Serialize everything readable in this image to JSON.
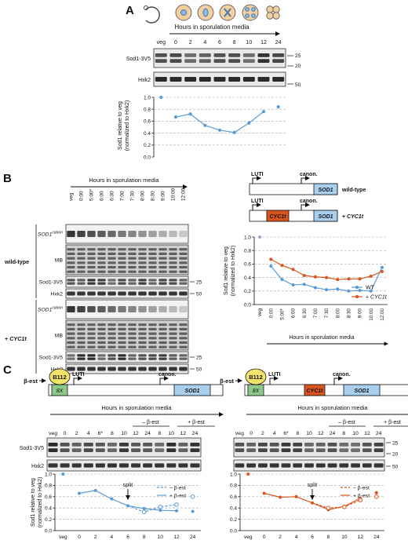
{
  "panelA": {
    "label": "A",
    "timeline_label": "Hours in sporulation media",
    "lanes": [
      "veg",
      "0",
      "2",
      "4",
      "6",
      "8",
      "10",
      "12",
      "24"
    ],
    "blots": [
      {
        "name": "Sod1-3V5",
        "markers": [
          "25",
          "20"
        ]
      },
      {
        "name": "Hxk2",
        "markers": [
          "50"
        ]
      }
    ],
    "ylabel_1": "Sod1 relative to veg",
    "ylabel_2": "(normalized to Hxk2)",
    "yticks": [
      "0.0",
      "0.2",
      "0.4",
      "0.6",
      "0.8",
      "1.0"
    ]
  },
  "panelB": {
    "label": "B",
    "timeline_label": "Hours in sporulation media",
    "lanes": [
      "veg",
      "0:00",
      "5:00*",
      "6:00",
      "6:30",
      "7:00",
      "7:30",
      "8:00",
      "8:30",
      "9:00",
      "10:00",
      "12:00"
    ],
    "group_wt": "wild-type",
    "group_cyc": "+ CYC1t",
    "rows_wt": [
      {
        "name": "SOD1",
        "sup": "canon",
        "marker": ""
      },
      {
        "name": "MB",
        "sup": "",
        "marker": ""
      },
      {
        "name": "Sod1-3V5",
        "sup": "",
        "marker": "25"
      },
      {
        "name": "Hxk2",
        "sup": "",
        "marker": "50"
      }
    ],
    "rows_cyc": [
      {
        "name": "SOD1",
        "sup": "canon",
        "marker": ""
      },
      {
        "name": "MB",
        "sup": "",
        "marker": ""
      },
      {
        "name": "Sod1-3V5",
        "sup": "",
        "marker": "25"
      },
      {
        "name": "Hxk2",
        "sup": "",
        "marker": "50"
      }
    ],
    "diagram": {
      "luti": "LUTI",
      "canon": "canon.",
      "gene": "SOD1",
      "cyc": "CYC1t",
      "wt_label": "wild-type",
      "cyc_label": "+ CYC1t"
    },
    "legend": [
      "WT",
      "+ CYC1t"
    ],
    "ylabel_1": "Sod1 relative to veg",
    "ylabel_2": "(normalized to Hxk2)",
    "yticks": [
      "0.0",
      "0.2",
      "0.4",
      "0.6",
      "0.8",
      "1.0"
    ],
    "xlabel": "Hours in sporulation media"
  },
  "panelC": {
    "label": "C",
    "left": {
      "best": "β-est",
      "b112": "B112",
      "x8": "8X",
      "luti": "LUTI",
      "canon": "canon.",
      "gene": "SOD1",
      "timeline": "Hours in sporulation media",
      "minus": "– β-est",
      "plus": "+ β-est",
      "lanes": [
        "veg",
        "0",
        "2",
        "4",
        "6*",
        "8",
        "10",
        "12",
        "24",
        "8",
        "10",
        "12",
        "24"
      ]
    },
    "right": {
      "best": "β-est",
      "b112": "B112",
      "x8": "8X",
      "luti": "LUTI",
      "cyc": "CYC1t",
      "canon": "canon.",
      "gene": "SOD1",
      "timeline": "Hours in sporulation media",
      "minus": "– β-est",
      "plus": "+ β-est",
      "lanes": [
        "veg",
        "0",
        "2",
        "4",
        "6*",
        "8",
        "10",
        "12",
        "24",
        "8",
        "10",
        "12",
        "24"
      ]
    },
    "blots": [
      "Sod1-3V5",
      "Hxk2"
    ],
    "markers": [
      "25",
      "20",
      "50"
    ],
    "ylabel_1": "Sod1 relative to veg",
    "ylabel_2": "(normalized to Hxk2)",
    "yticks": [
      "0.0",
      "0.2",
      "0.4",
      "0.6",
      "0.8",
      "1.0"
    ],
    "xticks": [
      "veg",
      "0",
      "2",
      "4",
      "6",
      "8",
      "10",
      "12",
      "24"
    ],
    "split": "split",
    "legend": [
      "– β-est",
      "+ β-est"
    ]
  },
  "colors": {
    "blue": "#5b9bd5",
    "orange": "#d9541e",
    "sodbox": "#a9cfee",
    "cycbox": "#d9541e",
    "b112": "#f4e36b",
    "x8": "#8cc98a"
  },
  "chart_data": [
    {
      "type": "line",
      "categories": [
        "veg",
        "0",
        "2",
        "4",
        "6",
        "8",
        "10",
        "12",
        "24"
      ],
      "series": [
        {
          "values": [
            1.0,
            0.67,
            0.72,
            0.53,
            0.45,
            0.41,
            0.57,
            0.76,
            0.84
          ]
        }
      ],
      "ylim": [
        0,
        1
      ],
      "ylabel": "Sod1 relative to veg (normalized to Hxk2)"
    },
    {
      "type": "line",
      "categories": [
        "veg",
        "0:00",
        "5:00*",
        "6:00",
        "6:30",
        "7:00",
        "7:30",
        "8:00",
        "8:30",
        "9:00",
        "10:00",
        "12:00"
      ],
      "series": [
        {
          "name": "WT",
          "values": [
            1.0,
            0.57,
            0.37,
            0.29,
            0.3,
            0.25,
            0.22,
            0.23,
            0.2,
            0.21,
            0.2,
            0.55
          ]
        },
        {
          "name": "+ CYC1t",
          "values": [
            1.0,
            0.67,
            0.58,
            0.52,
            0.43,
            0.41,
            0.4,
            0.37,
            0.38,
            0.38,
            0.42,
            0.49
          ]
        }
      ],
      "ylim": [
        0,
        1
      ],
      "xlabel": "Hours in sporulation media",
      "ylabel": "Sod1 relative to veg (normalized to Hxk2)"
    },
    {
      "type": "line",
      "categories": [
        "veg",
        "0",
        "2",
        "4",
        "6",
        "8",
        "10",
        "12",
        "24"
      ],
      "series": [
        {
          "name": "– β-est",
          "values": [
            1.0,
            0.66,
            0.71,
            0.56,
            0.44,
            0.33,
            0.42,
            0.46,
            0.6
          ]
        },
        {
          "name": "+ β-est",
          "values": [
            1.0,
            0.66,
            0.71,
            0.56,
            0.44,
            0.39,
            0.36,
            0.35,
            0.34
          ]
        }
      ],
      "ylim": [
        0,
        1
      ],
      "ylabel": "Sod1 relative to veg (normalized to Hxk2)"
    },
    {
      "type": "line",
      "categories": [
        "veg",
        "0",
        "2",
        "4",
        "6",
        "8",
        "10",
        "12",
        "24"
      ],
      "series": [
        {
          "name": "– β-est",
          "values": [
            1.0,
            0.66,
            0.59,
            0.6,
            0.49,
            0.4,
            0.42,
            0.54,
            0.6
          ]
        },
        {
          "name": "+ β-est",
          "values": [
            1.0,
            0.66,
            0.59,
            0.6,
            0.49,
            0.37,
            0.43,
            0.57,
            0.67
          ]
        }
      ],
      "ylim": [
        0,
        1
      ],
      "ylabel": "Sod1 relative to veg (normalized to Hxk2)"
    }
  ]
}
